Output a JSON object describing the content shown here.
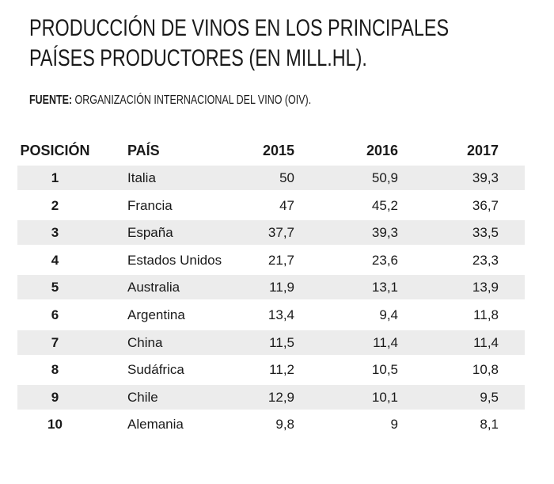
{
  "header": {
    "title": [
      "PRODUCCIÓN DE VINOS EN LOS PRINCIPALES",
      "PAÍSES PRODUCTORES (EN MILL.HL)."
    ],
    "source_label": "FUENTE:",
    "source": "ORGANIZACIÓN INTERNACIONAL DEL VINO (OIV)."
  },
  "table": {
    "header": [
      "POSICIÓN",
      "PAÍS",
      "2015",
      "2016",
      "2017"
    ],
    "rows": [
      [
        "1",
        "Italia",
        "50",
        "50,9",
        "39,3"
      ],
      [
        "2",
        "Francia",
        "47",
        "45,2",
        "36,7"
      ],
      [
        "3",
        "España",
        "37,7",
        "39,3",
        "33,5"
      ],
      [
        "4",
        "Estados Unidos",
        "21,7",
        "23,6",
        "23,3"
      ],
      [
        "5",
        "Australia",
        "11,9",
        "13,1",
        "13,9"
      ],
      [
        "6",
        "Argentina",
        "13,4",
        "9,4",
        "11,8"
      ],
      [
        "7",
        "China",
        "11,5",
        "11,4",
        "11,4"
      ],
      [
        "8",
        "Sudáfrica",
        "11,2",
        "10,5",
        "10,8"
      ],
      [
        "9",
        "Chile",
        "12,9",
        "10,1",
        "9,5"
      ],
      [
        "10",
        "Alemania",
        "9,8",
        "9",
        "8,1"
      ]
    ]
  }
}
